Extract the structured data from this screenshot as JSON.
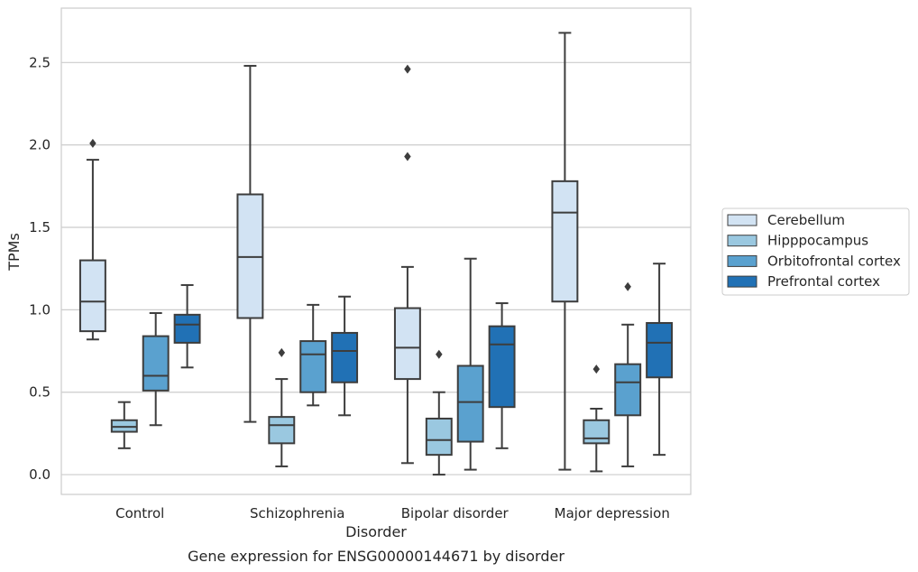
{
  "chart_data": {
    "type": "box",
    "title": "Gene expression for ENSG00000144671 by disorder",
    "xlabel": "Disorder",
    "ylabel": "TPMs",
    "ylim": [
      -0.12,
      2.83
    ],
    "yticks": [
      "0.0",
      "0.5",
      "1.0",
      "1.5",
      "2.0",
      "2.5"
    ],
    "ytick_values": [
      0,
      0.5,
      1.0,
      1.5,
      2.0,
      2.5
    ],
    "grid": true,
    "legend_position": "right",
    "categories": [
      "Control",
      "Schizophrenia",
      "Bipolar disorder",
      "Major depression"
    ],
    "series": [
      {
        "name": "Cerebellum",
        "color": "#d2e3f3",
        "boxes": [
          {
            "whisker_low": 0.82,
            "q1": 0.87,
            "median": 1.05,
            "q3": 1.3,
            "whisker_high": 1.91,
            "outliers": [
              2.01
            ]
          },
          {
            "whisker_low": 0.32,
            "q1": 0.95,
            "median": 1.32,
            "q3": 1.7,
            "whisker_high": 2.48,
            "outliers": []
          },
          {
            "whisker_low": 0.07,
            "q1": 0.58,
            "median": 0.77,
            "q3": 1.01,
            "whisker_high": 1.26,
            "outliers": [
              1.93,
              2.46
            ]
          },
          {
            "whisker_low": 0.03,
            "q1": 1.05,
            "median": 1.59,
            "q3": 1.78,
            "whisker_high": 2.68,
            "outliers": []
          }
        ]
      },
      {
        "name": "Hipppocampus",
        "color": "#9ac8e0",
        "boxes": [
          {
            "whisker_low": 0.16,
            "q1": 0.26,
            "median": 0.29,
            "q3": 0.33,
            "whisker_high": 0.44,
            "outliers": []
          },
          {
            "whisker_low": 0.05,
            "q1": 0.19,
            "median": 0.3,
            "q3": 0.35,
            "whisker_high": 0.58,
            "outliers": [
              0.74
            ]
          },
          {
            "whisker_low": 0.0,
            "q1": 0.12,
            "median": 0.21,
            "q3": 0.34,
            "whisker_high": 0.5,
            "outliers": [
              0.73
            ]
          },
          {
            "whisker_low": 0.02,
            "q1": 0.19,
            "median": 0.22,
            "q3": 0.33,
            "whisker_high": 0.4,
            "outliers": [
              0.64
            ]
          }
        ]
      },
      {
        "name": "Orbitofrontal cortex",
        "color": "#5aa1cf",
        "boxes": [
          {
            "whisker_low": 0.3,
            "q1": 0.51,
            "median": 0.6,
            "q3": 0.84,
            "whisker_high": 0.98,
            "outliers": []
          },
          {
            "whisker_low": 0.42,
            "q1": 0.5,
            "median": 0.73,
            "q3": 0.81,
            "whisker_high": 1.03,
            "outliers": []
          },
          {
            "whisker_low": 0.03,
            "q1": 0.2,
            "median": 0.44,
            "q3": 0.66,
            "whisker_high": 1.31,
            "outliers": []
          },
          {
            "whisker_low": 0.05,
            "q1": 0.36,
            "median": 0.56,
            "q3": 0.67,
            "whisker_high": 0.91,
            "outliers": [
              1.14
            ]
          }
        ]
      },
      {
        "name": "Prefrontal cortex",
        "color": "#2171b5",
        "boxes": [
          {
            "whisker_low": 0.65,
            "q1": 0.8,
            "median": 0.91,
            "q3": 0.97,
            "whisker_high": 1.15,
            "outliers": []
          },
          {
            "whisker_low": 0.36,
            "q1": 0.56,
            "median": 0.75,
            "q3": 0.86,
            "whisker_high": 1.08,
            "outliers": []
          },
          {
            "whisker_low": 0.16,
            "q1": 0.41,
            "median": 0.79,
            "q3": 0.9,
            "whisker_high": 1.04,
            "outliers": []
          },
          {
            "whisker_low": 0.12,
            "q1": 0.59,
            "median": 0.8,
            "q3": 0.92,
            "whisker_high": 1.28,
            "outliers": []
          }
        ]
      }
    ]
  }
}
